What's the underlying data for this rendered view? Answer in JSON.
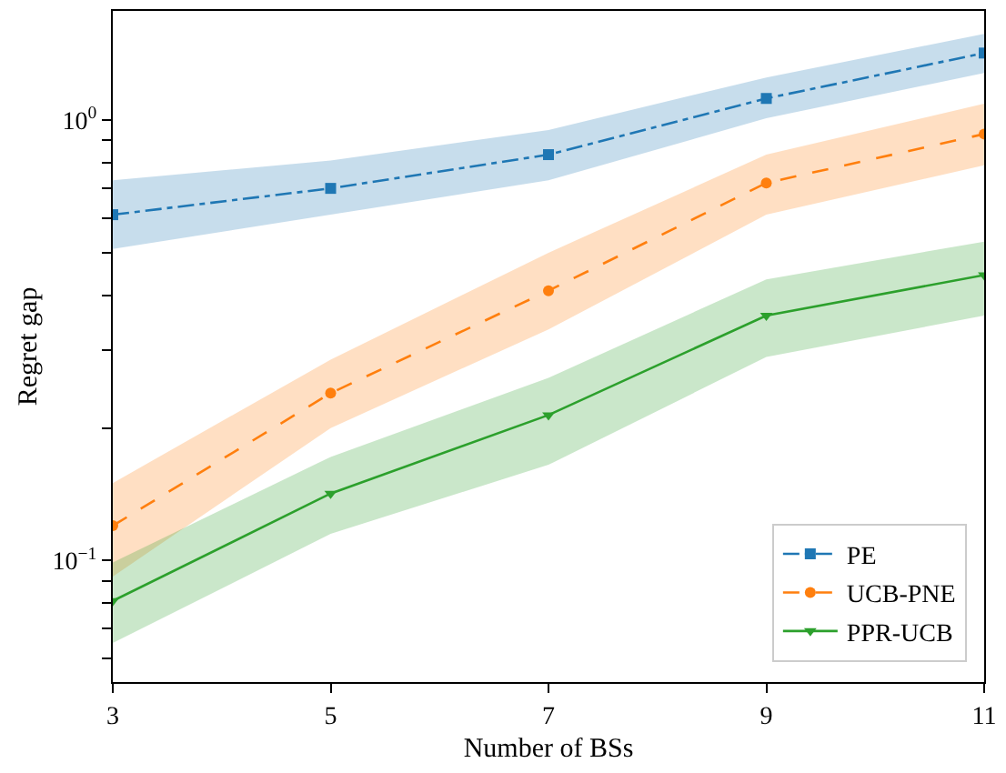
{
  "chart_data": {
    "type": "line",
    "xlabel": "Number of BSs",
    "ylabel": "Regret gap",
    "x": [
      3,
      5,
      7,
      9,
      11
    ],
    "series": [
      {
        "name": "PE",
        "color": "#1f77b4",
        "marker": "square",
        "line_style": "dashdot",
        "values": [
          0.61,
          0.7,
          0.835,
          1.12,
          1.42
        ],
        "lower": [
          0.51,
          0.61,
          0.73,
          1.01,
          1.28
        ],
        "upper": [
          0.73,
          0.81,
          0.95,
          1.25,
          1.57
        ]
      },
      {
        "name": "UCB-PNE",
        "color": "#ff7f0e",
        "marker": "circle",
        "line_style": "dashed",
        "values": [
          0.12,
          0.24,
          0.41,
          0.72,
          0.93
        ],
        "lower": [
          0.092,
          0.2,
          0.335,
          0.61,
          0.79
        ],
        "upper": [
          0.15,
          0.286,
          0.5,
          0.835,
          1.09
        ]
      },
      {
        "name": "PPR-UCB",
        "color": "#2ca02c",
        "marker": "triangle",
        "line_style": "solid",
        "values": [
          0.081,
          0.142,
          0.214,
          0.36,
          0.445
        ],
        "lower": [
          0.065,
          0.115,
          0.165,
          0.29,
          0.36
        ],
        "upper": [
          0.099,
          0.172,
          0.26,
          0.435,
          0.53
        ]
      }
    ],
    "log": "y",
    "xlim": [
      3,
      11
    ],
    "xticks": [
      3,
      5,
      7,
      9,
      11
    ],
    "ylim": [
      0.053,
      1.77
    ],
    "yticks": [
      {
        "value": 0.06,
        "label": null
      },
      {
        "value": 0.07,
        "label": null
      },
      {
        "value": 0.08,
        "label": null
      },
      {
        "value": 0.09,
        "label": null
      },
      {
        "value": 0.1,
        "label": "10$^{−1}$"
      },
      {
        "value": 0.2,
        "label": null
      },
      {
        "value": 0.3,
        "label": null
      },
      {
        "value": 0.4,
        "label": null
      },
      {
        "value": 0.5,
        "label": null
      },
      {
        "value": 0.6,
        "label": null
      },
      {
        "value": 0.7,
        "label": null
      },
      {
        "value": 0.8,
        "label": null
      },
      {
        "value": 0.9,
        "label": null
      },
      {
        "value": 1,
        "label": "10$^{0}$"
      }
    ],
    "legend": "bottom right"
  }
}
